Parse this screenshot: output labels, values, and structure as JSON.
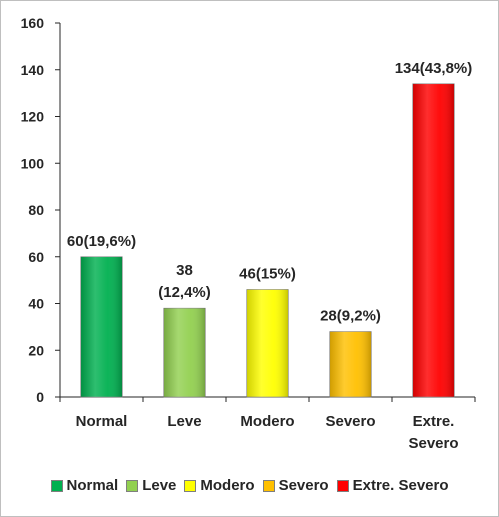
{
  "chart_data": {
    "type": "bar",
    "categories": [
      "Normal",
      "Leve",
      "Modero",
      "Severo",
      "Extre. Severo"
    ],
    "category_labels": [
      [
        "Normal"
      ],
      [
        "Leve"
      ],
      [
        "Modero"
      ],
      [
        "Severo"
      ],
      [
        "Extre.",
        "Severo"
      ]
    ],
    "values": [
      60,
      38,
      46,
      28,
      134
    ],
    "data_labels": [
      [
        "60(19,6%)"
      ],
      [
        "38",
        "(12,4%)"
      ],
      [
        "46(15%)"
      ],
      [
        "28(9,2%)"
      ],
      [
        "134(43,8%)"
      ]
    ],
    "colors": [
      "#00b050",
      "#92d050",
      "#ffff00",
      "#ffc000",
      "#ff0000"
    ],
    "ylim": [
      0,
      160
    ],
    "yticks": [
      0,
      20,
      40,
      60,
      80,
      100,
      120,
      140,
      160
    ],
    "ytick_labels": [
      "0",
      "20",
      "40",
      "60",
      "80",
      "100",
      "120",
      "140",
      "160"
    ],
    "grid": false,
    "legend_position": "bottom",
    "legend": [
      "Normal",
      "Leve",
      "Modero",
      "Severo",
      "Extre. Severo"
    ],
    "title": "",
    "xlabel": "",
    "ylabel": ""
  }
}
